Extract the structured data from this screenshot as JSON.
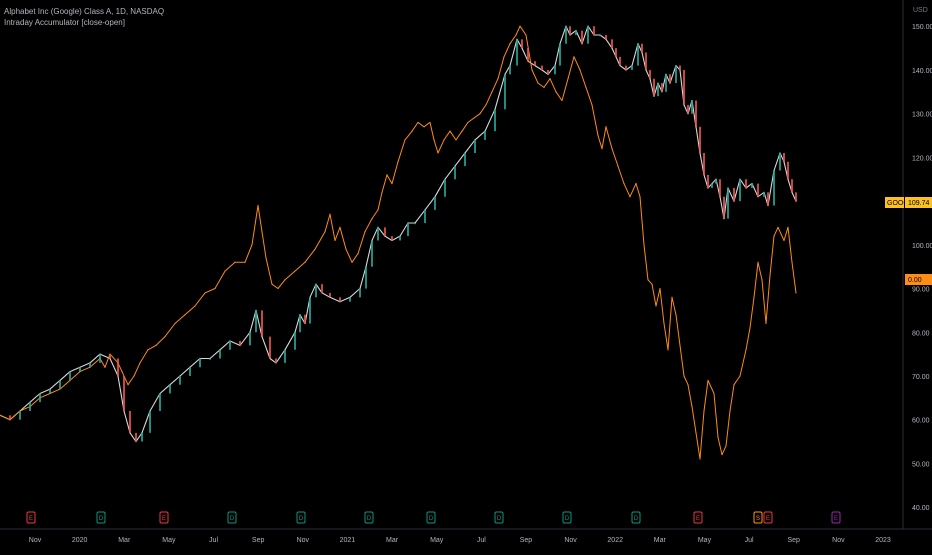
{
  "legend": {
    "symbol_line": "Alphabet Inc (Google) Class A, 1D, NASDAQ",
    "indicator_line": "Intraday Accumulator [close-open]"
  },
  "chart_data": {
    "type": "line",
    "title": "Alphabet Inc (Google) Class A, 1D, NASDAQ",
    "currency": "USD",
    "y_ticks": [
      "150.00",
      "140.00",
      "130.00",
      "120.00",
      "110.00",
      "100.00",
      "90.00",
      "80.00",
      "70.00",
      "60.00",
      "50.00",
      "40.00"
    ],
    "ylim": [
      35,
      156
    ],
    "x_ticks": [
      "Nov",
      "2020",
      "Mar",
      "May",
      "Jul",
      "Sep",
      "Nov",
      "2021",
      "Mar",
      "May",
      "Jul",
      "Sep",
      "Nov",
      "2022",
      "Mar",
      "May",
      "Jul",
      "Sep",
      "Nov",
      "2023"
    ],
    "price_label": {
      "name": "GOOGL",
      "value": "109.74"
    },
    "indicator_label": {
      "value": "0.00"
    },
    "series": [
      {
        "name": "GOOGL",
        "color": "#d8d8d8",
        "values": [
          [
            0,
            61
          ],
          [
            10,
            60
          ],
          [
            20,
            62
          ],
          [
            30,
            64
          ],
          [
            40,
            66
          ],
          [
            50,
            67
          ],
          [
            60,
            69
          ],
          [
            70,
            71
          ],
          [
            80,
            72
          ],
          [
            90,
            73
          ],
          [
            100,
            75
          ],
          [
            110,
            74
          ],
          [
            118,
            70
          ],
          [
            124,
            62
          ],
          [
            130,
            57
          ],
          [
            136,
            55
          ],
          [
            142,
            57
          ],
          [
            150,
            62
          ],
          [
            160,
            66
          ],
          [
            170,
            68
          ],
          [
            180,
            70
          ],
          [
            190,
            72
          ],
          [
            200,
            74
          ],
          [
            210,
            74
          ],
          [
            220,
            76
          ],
          [
            230,
            78
          ],
          [
            240,
            77
          ],
          [
            250,
            80
          ],
          [
            256,
            85
          ],
          [
            262,
            79
          ],
          [
            270,
            74
          ],
          [
            276,
            73
          ],
          [
            285,
            76
          ],
          [
            295,
            80
          ],
          [
            300,
            84
          ],
          [
            305,
            82
          ],
          [
            310,
            88
          ],
          [
            316,
            91
          ],
          [
            322,
            89
          ],
          [
            330,
            88
          ],
          [
            340,
            87
          ],
          [
            350,
            88
          ],
          [
            360,
            90
          ],
          [
            366,
            95
          ],
          [
            372,
            101
          ],
          [
            378,
            104
          ],
          [
            385,
            102
          ],
          [
            392,
            101
          ],
          [
            400,
            102
          ],
          [
            408,
            105
          ],
          [
            415,
            105
          ],
          [
            425,
            108
          ],
          [
            435,
            111
          ],
          [
            445,
            115
          ],
          [
            455,
            118
          ],
          [
            465,
            121
          ],
          [
            475,
            124
          ],
          [
            485,
            126
          ],
          [
            495,
            131
          ],
          [
            505,
            139
          ],
          [
            510,
            141
          ],
          [
            517,
            147
          ],
          [
            522,
            145
          ],
          [
            528,
            142
          ],
          [
            535,
            141
          ],
          [
            542,
            140
          ],
          [
            548,
            139
          ],
          [
            555,
            141
          ],
          [
            560,
            146
          ],
          [
            566,
            150
          ],
          [
            570,
            148
          ],
          [
            576,
            149
          ],
          [
            582,
            146
          ],
          [
            588,
            150
          ],
          [
            594,
            148
          ],
          [
            600,
            148
          ],
          [
            606,
            147
          ],
          [
            612,
            145
          ],
          [
            616,
            143
          ],
          [
            620,
            141
          ],
          [
            626,
            140
          ],
          [
            632,
            141
          ],
          [
            638,
            146
          ],
          [
            642,
            144
          ],
          [
            646,
            140
          ],
          [
            650,
            138
          ],
          [
            654,
            134
          ],
          [
            658,
            137
          ],
          [
            662,
            135
          ],
          [
            666,
            139
          ],
          [
            670,
            137
          ],
          [
            676,
            141
          ],
          [
            680,
            140
          ],
          [
            684,
            132
          ],
          [
            688,
            130
          ],
          [
            692,
            133
          ],
          [
            696,
            127
          ],
          [
            700,
            121
          ],
          [
            704,
            116
          ],
          [
            708,
            113
          ],
          [
            712,
            114
          ],
          [
            716,
            115
          ],
          [
            720,
            111
          ],
          [
            724,
            106
          ],
          [
            728,
            113
          ],
          [
            734,
            110
          ],
          [
            740,
            115
          ],
          [
            746,
            113
          ],
          [
            752,
            114
          ],
          [
            758,
            111
          ],
          [
            764,
            112
          ],
          [
            768,
            109
          ],
          [
            774,
            117
          ],
          [
            780,
            121
          ],
          [
            784,
            119
          ],
          [
            788,
            115
          ],
          [
            792,
            112
          ],
          [
            796,
            110
          ]
        ]
      },
      {
        "name": "Intraday Accumulator",
        "color": "#ff8c14",
        "values": [
          [
            0,
            61
          ],
          [
            10,
            60
          ],
          [
            20,
            62
          ],
          [
            30,
            63
          ],
          [
            40,
            65
          ],
          [
            50,
            66
          ],
          [
            60,
            67
          ],
          [
            70,
            69
          ],
          [
            80,
            71
          ],
          [
            90,
            72
          ],
          [
            100,
            74
          ],
          [
            105,
            72
          ],
          [
            110,
            75
          ],
          [
            118,
            73
          ],
          [
            122,
            71
          ],
          [
            128,
            68
          ],
          [
            134,
            70
          ],
          [
            140,
            73
          ],
          [
            148,
            76
          ],
          [
            156,
            77
          ],
          [
            165,
            79
          ],
          [
            175,
            82
          ],
          [
            185,
            84
          ],
          [
            195,
            86
          ],
          [
            205,
            89
          ],
          [
            215,
            90
          ],
          [
            225,
            94
          ],
          [
            235,
            96
          ],
          [
            245,
            96
          ],
          [
            252,
            100
          ],
          [
            258,
            109
          ],
          [
            262,
            103
          ],
          [
            266,
            97
          ],
          [
            272,
            91
          ],
          [
            278,
            90
          ],
          [
            285,
            92
          ],
          [
            295,
            94
          ],
          [
            305,
            96
          ],
          [
            315,
            99
          ],
          [
            325,
            103
          ],
          [
            330,
            107
          ],
          [
            335,
            101
          ],
          [
            340,
            104
          ],
          [
            346,
            99
          ],
          [
            352,
            96
          ],
          [
            358,
            98
          ],
          [
            365,
            103
          ],
          [
            372,
            106
          ],
          [
            378,
            108
          ],
          [
            382,
            112
          ],
          [
            387,
            116
          ],
          [
            392,
            114
          ],
          [
            398,
            119
          ],
          [
            405,
            124
          ],
          [
            412,
            126
          ],
          [
            418,
            128
          ],
          [
            424,
            127
          ],
          [
            430,
            128
          ],
          [
            434,
            124
          ],
          [
            438,
            121
          ],
          [
            444,
            124
          ],
          [
            450,
            126
          ],
          [
            456,
            124
          ],
          [
            462,
            126
          ],
          [
            468,
            128
          ],
          [
            474,
            129
          ],
          [
            480,
            130
          ],
          [
            486,
            132
          ],
          [
            492,
            135
          ],
          [
            498,
            138
          ],
          [
            504,
            143
          ],
          [
            510,
            146
          ],
          [
            516,
            148
          ],
          [
            520,
            150
          ],
          [
            526,
            148
          ],
          [
            532,
            140
          ],
          [
            538,
            137
          ],
          [
            544,
            136
          ],
          [
            550,
            138
          ],
          [
            556,
            135
          ],
          [
            562,
            133
          ],
          [
            568,
            138
          ],
          [
            574,
            143
          ],
          [
            580,
            140
          ],
          [
            586,
            136
          ],
          [
            592,
            132
          ],
          [
            598,
            125
          ],
          [
            602,
            122
          ],
          [
            606,
            127
          ],
          [
            612,
            122
          ],
          [
            618,
            118
          ],
          [
            624,
            114
          ],
          [
            630,
            111
          ],
          [
            636,
            114
          ],
          [
            640,
            111
          ],
          [
            644,
            100
          ],
          [
            648,
            92
          ],
          [
            652,
            91
          ],
          [
            656,
            86
          ],
          [
            660,
            90
          ],
          [
            664,
            82
          ],
          [
            668,
            76
          ],
          [
            672,
            88
          ],
          [
            676,
            84
          ],
          [
            680,
            77
          ],
          [
            684,
            70
          ],
          [
            688,
            68
          ],
          [
            692,
            63
          ],
          [
            696,
            57
          ],
          [
            700,
            51
          ],
          [
            704,
            62
          ],
          [
            708,
            69
          ],
          [
            714,
            66
          ],
          [
            718,
            56
          ],
          [
            722,
            52
          ],
          [
            726,
            54
          ],
          [
            730,
            62
          ],
          [
            734,
            68
          ],
          [
            740,
            70
          ],
          [
            746,
            76
          ],
          [
            750,
            81
          ],
          [
            754,
            88
          ],
          [
            758,
            96
          ],
          [
            762,
            92
          ],
          [
            766,
            82
          ],
          [
            770,
            93
          ],
          [
            774,
            102
          ],
          [
            778,
            104
          ],
          [
            784,
            101
          ],
          [
            788,
            104
          ],
          [
            792,
            96
          ],
          [
            796,
            89
          ]
        ]
      }
    ],
    "events": [
      {
        "label": "E",
        "color": "#f23645"
      },
      {
        "label": "D",
        "color": "#089981"
      },
      {
        "label": "E",
        "color": "#f23645"
      },
      {
        "label": "D",
        "color": "#089981"
      },
      {
        "label": "D",
        "color": "#089981"
      },
      {
        "label": "D",
        "color": "#089981"
      },
      {
        "label": "D",
        "color": "#089981"
      },
      {
        "label": "D",
        "color": "#089981"
      },
      {
        "label": "D",
        "color": "#089981"
      },
      {
        "label": "D",
        "color": "#089981"
      },
      {
        "label": "E",
        "color": "#f23645"
      },
      {
        "label": "S",
        "color": "#ff9800"
      },
      {
        "label": "E",
        "color": "#f23645"
      },
      {
        "label": "E",
        "color": "#9c27b0"
      }
    ]
  }
}
